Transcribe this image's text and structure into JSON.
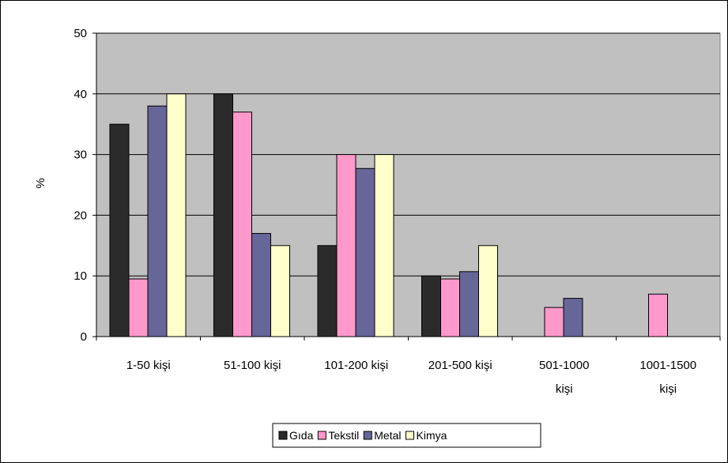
{
  "chart_data": {
    "type": "bar",
    "ylabel": "%",
    "ylim": [
      0,
      50
    ],
    "yticks": [
      "0",
      "10",
      "20",
      "30",
      "40",
      "50"
    ],
    "grid": true,
    "legend_position": "bottom",
    "categories": [
      [
        "1-50 kişi"
      ],
      [
        "51-100 kişi"
      ],
      [
        "101-200 kişi"
      ],
      [
        "201-500 kişi"
      ],
      [
        "501-1000",
        "kişi"
      ],
      [
        "1001-1500",
        "kişi"
      ]
    ],
    "series": [
      {
        "name": "Gıda",
        "color": "#2b2b2b",
        "values": [
          35,
          40,
          15,
          10,
          0,
          0
        ]
      },
      {
        "name": "Tekstil",
        "color": "#ff99cc",
        "values": [
          9.5,
          37,
          30,
          9.5,
          4.8,
          7
        ]
      },
      {
        "name": "Metal",
        "color": "#666699",
        "values": [
          38,
          17,
          27.7,
          10.7,
          6.3,
          0
        ]
      },
      {
        "name": "Kimya",
        "color": "#ffffcc",
        "values": [
          40,
          15,
          30,
          15,
          0,
          0
        ]
      }
    ],
    "plot_background": "#c0c0c0"
  }
}
